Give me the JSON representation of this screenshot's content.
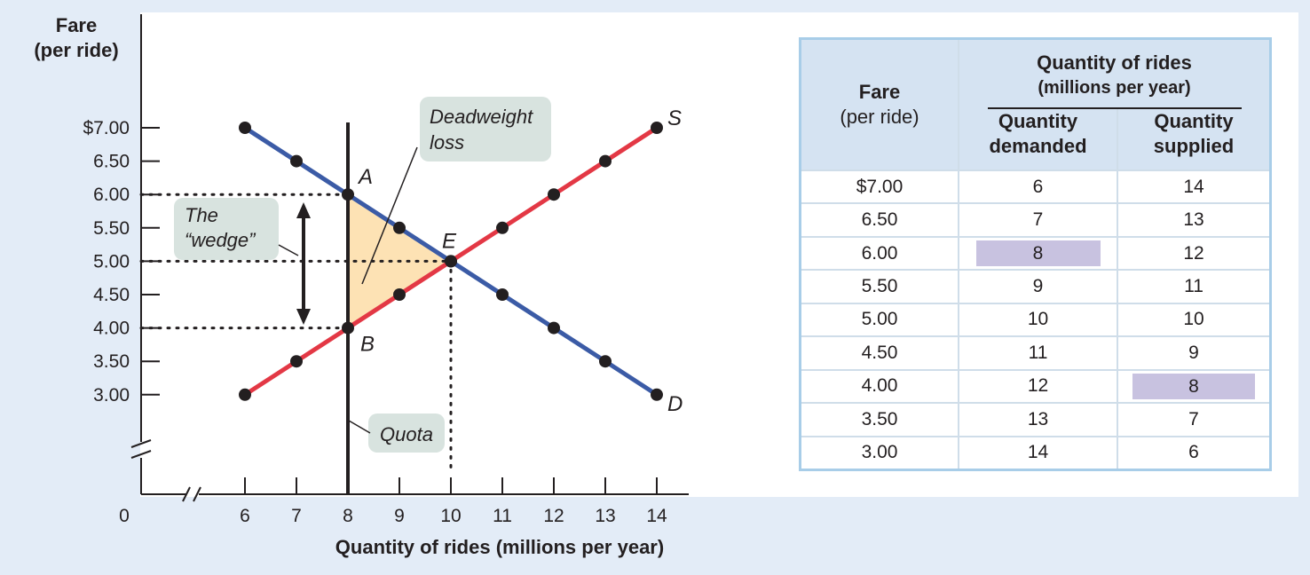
{
  "chart_data": {
    "type": "line",
    "xlabel": "Quantity of rides (millions per year)",
    "ylabel": [
      "Fare",
      "(per ride)"
    ],
    "x_ticks": [
      6,
      7,
      8,
      9,
      10,
      11,
      12,
      13,
      14
    ],
    "y_ticks": [
      "$7.00",
      "6.50",
      "6.00",
      "5.50",
      "5.00",
      "4.50",
      "4.00",
      "3.50",
      "3.00"
    ],
    "y_tick_values": [
      7.0,
      6.5,
      6.0,
      5.5,
      5.0,
      4.5,
      4.0,
      3.5,
      3.0
    ],
    "origin_label": "0",
    "xlim": [
      6,
      14
    ],
    "ylim": [
      3.0,
      7.0
    ],
    "axis_breaks": true,
    "series": [
      {
        "name": "D",
        "color": "#3b5ba6",
        "points": [
          [
            6,
            7.0
          ],
          [
            7,
            6.5
          ],
          [
            8,
            6.0
          ],
          [
            9,
            5.5
          ],
          [
            10,
            5.0
          ],
          [
            11,
            4.5
          ],
          [
            12,
            4.0
          ],
          [
            13,
            3.5
          ],
          [
            14,
            3.0
          ]
        ]
      },
      {
        "name": "S",
        "color": "#e33845",
        "points": [
          [
            6,
            3.0
          ],
          [
            7,
            3.5
          ],
          [
            8,
            4.0
          ],
          [
            9,
            4.5
          ],
          [
            10,
            5.0
          ],
          [
            11,
            5.5
          ],
          [
            12,
            6.0
          ],
          [
            13,
            6.5
          ],
          [
            14,
            7.0
          ]
        ]
      }
    ],
    "quota_x": 8,
    "deadweight_loss_triangle": [
      [
        8,
        6.0
      ],
      [
        8,
        4.0
      ],
      [
        10,
        5.0
      ]
    ],
    "deadweight_color": "#fde2b4",
    "labeled_points": [
      {
        "label": "A",
        "x": 8,
        "y": 6.0
      },
      {
        "label": "B",
        "x": 8,
        "y": 4.0
      },
      {
        "label": "E",
        "x": 10,
        "y": 5.0
      }
    ],
    "annotations": {
      "deadweight": [
        "Deadweight",
        "loss"
      ],
      "wedge": [
        "The",
        "“wedge”"
      ],
      "quota": "Quota"
    }
  },
  "table": {
    "fare_header": [
      "Fare",
      "(per ride)"
    ],
    "group_header": [
      "Quantity of rides",
      "(millions per year)"
    ],
    "qd_header": [
      "Quantity",
      "demanded"
    ],
    "qs_header": [
      "Quantity",
      "supplied"
    ],
    "rows": [
      {
        "fare": "$7.00",
        "qd": "6",
        "qs": "14"
      },
      {
        "fare": "6.50",
        "qd": "7",
        "qs": "13"
      },
      {
        "fare": "6.00",
        "qd": "8",
        "qs": "12"
      },
      {
        "fare": "5.50",
        "qd": "9",
        "qs": "11"
      },
      {
        "fare": "5.00",
        "qd": "10",
        "qs": "10"
      },
      {
        "fare": "4.50",
        "qd": "11",
        "qs": "9"
      },
      {
        "fare": "4.00",
        "qd": "12",
        "qs": "8"
      },
      {
        "fare": "3.50",
        "qd": "13",
        "qs": "7"
      },
      {
        "fare": "3.00",
        "qd": "14",
        "qs": "6"
      }
    ],
    "highlight_color": "#c8c2e0"
  }
}
